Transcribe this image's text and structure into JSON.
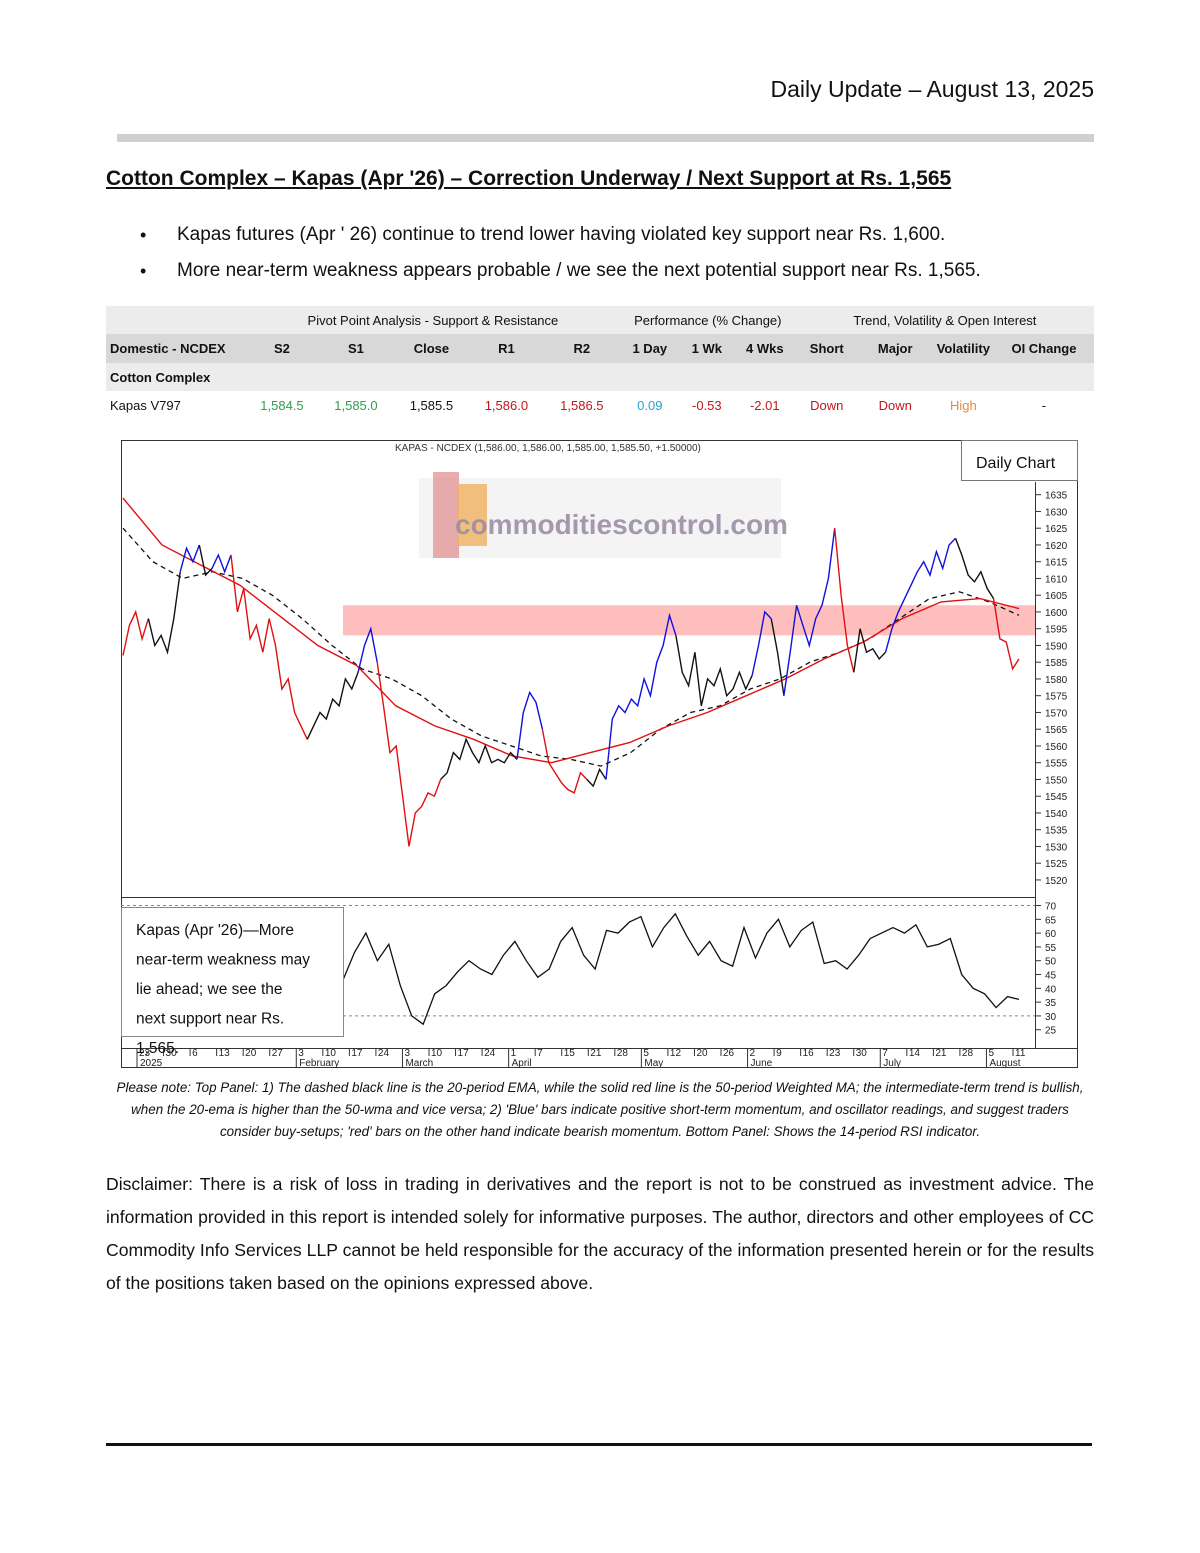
{
  "header": {
    "date": "Daily Update – August 13, 2025"
  },
  "title": "Cotton Complex – Kapas (Apr '26) – Correction Underway / Next Support at Rs. 1,565",
  "bullets": [
    "Kapas futures (Apr ' 26) continue to trend lower having violated key support near Rs. 1,600.",
    "More near-term weakness appears probable / we see the next potential support near Rs. 1,565."
  ],
  "table": {
    "groups": [
      "Pivot Point Analysis - Support & Resistance",
      "Performance (% Change)",
      "Trend, Volatility & Open Interest"
    ],
    "headers": [
      "Domestic - NCDEX",
      "S2",
      "S1",
      "Close",
      "R1",
      "R2",
      "1 Day",
      "1 Wk",
      "4 Wks",
      "Short",
      "Major",
      "Volatility",
      "OI Change"
    ],
    "section": "Cotton Complex",
    "row": [
      "Kapas V797",
      "1,584.5",
      "1,585.0",
      "1,585.5",
      "1,586.0",
      "1,586.5",
      "0.09",
      "-0.53",
      "-2.01",
      "Down",
      "Down",
      "High",
      "-"
    ],
    "colors": {
      "green": "#2e9e4f",
      "red": "#c0171b",
      "cyan": "#1fa6c9",
      "orange": "#e6893a",
      "black": "#111111"
    }
  },
  "chart": {
    "header": "KAPAS - NCDEX (1,586.00, 1,586.00, 1,585.00, 1,585.50, +1.50000)",
    "badge": "Daily Chart",
    "watermark": "commoditiescontrol.com",
    "annotation": "Kapas (Apr '26)—More near-term weakness may lie ahead; we see the next support near Rs. 1,565.",
    "colors": {
      "up": "#1010e0",
      "down": "#e01010",
      "neutral": "#111111",
      "wma": "#e01010",
      "zone": "#ffb3b3"
    }
  },
  "chart_data": {
    "type": "line",
    "title": "KAPAS - NCDEX (1,586.00, 1,586.00, 1,585.00, 1,585.50, +1.50000)",
    "price_axis": {
      "ticks": [
        1520,
        1525,
        1530,
        1535,
        1540,
        1545,
        1550,
        1555,
        1560,
        1565,
        1570,
        1575,
        1580,
        1585,
        1590,
        1595,
        1600,
        1605,
        1610,
        1615,
        1620,
        1625,
        1630,
        1635
      ],
      "ylim": [
        1517,
        1637
      ]
    },
    "rsi_axis": {
      "ticks": [
        25,
        30,
        35,
        40,
        45,
        50,
        55,
        60,
        65,
        70
      ],
      "ylim": [
        22,
        72
      ],
      "reference_lines": [
        70,
        30
      ]
    },
    "support_zone": [
      1593,
      1602
    ],
    "x_day_labels": [
      "23",
      "30",
      "6",
      "13",
      "20",
      "27",
      "3",
      "10",
      "17",
      "24",
      "3",
      "10",
      "17",
      "24",
      "1",
      "7",
      "15",
      "21",
      "28",
      "5",
      "12",
      "20",
      "26",
      "2",
      "9",
      "16",
      "23",
      "30",
      "7",
      "14",
      "21",
      "28",
      "5",
      "11"
    ],
    "x_month_labels": [
      "2025",
      "February",
      "March",
      "April",
      "May",
      "June",
      "July",
      "August"
    ],
    "series": [
      {
        "name": "Price",
        "segments": [
          {
            "trend": "down",
            "values": [
              1587,
              1596,
              1600,
              1592,
              1598
            ]
          },
          {
            "trend": "neutral",
            "values": [
              1598,
              1590,
              1593,
              1588,
              1598,
              1612
            ]
          },
          {
            "trend": "up",
            "values": [
              1612,
              1619,
              1615,
              1620
            ]
          },
          {
            "trend": "neutral",
            "values": [
              1620,
              1611,
              1613
            ]
          },
          {
            "trend": "up",
            "values": [
              1613,
              1617,
              1612,
              1617
            ]
          },
          {
            "trend": "down",
            "values": [
              1617,
              1600,
              1607,
              1592,
              1596,
              1588,
              1598,
              1590,
              1577,
              1580,
              1570,
              1566,
              1562
            ]
          },
          {
            "trend": "neutral",
            "values": [
              1562,
              1566,
              1570,
              1568,
              1574,
              1572,
              1580,
              1577,
              1582
            ]
          },
          {
            "trend": "up",
            "values": [
              1582,
              1590,
              1595,
              1585
            ]
          },
          {
            "trend": "down",
            "values": [
              1585,
              1572,
              1558,
              1560,
              1545,
              1530,
              1540,
              1542,
              1546,
              1545,
              1550
            ]
          },
          {
            "trend": "neutral",
            "values": [
              1550,
              1552,
              1558,
              1556,
              1562,
              1558,
              1555,
              1560,
              1555,
              1556,
              1555,
              1558,
              1556
            ]
          },
          {
            "trend": "up",
            "values": [
              1556,
              1570,
              1576,
              1573,
              1565
            ]
          },
          {
            "trend": "down",
            "values": [
              1565,
              1555,
              1552,
              1549,
              1547,
              1546,
              1552,
              1550
            ]
          },
          {
            "trend": "neutral",
            "values": [
              1550,
              1548,
              1553,
              1550
            ]
          },
          {
            "trend": "up",
            "values": [
              1550,
              1568,
              1572,
              1570,
              1574,
              1572,
              1580,
              1575,
              1585,
              1590,
              1599,
              1593
            ]
          },
          {
            "trend": "neutral",
            "values": [
              1593,
              1582,
              1578,
              1588,
              1572,
              1580,
              1578,
              1583,
              1575,
              1577,
              1582,
              1577,
              1581
            ]
          },
          {
            "trend": "up",
            "values": [
              1581,
              1590,
              1600,
              1598
            ]
          },
          {
            "trend": "neutral",
            "values": [
              1598,
              1588,
              1575
            ]
          },
          {
            "trend": "up",
            "values": [
              1575,
              1588,
              1602,
              1596,
              1590,
              1598,
              1602,
              1610,
              1625
            ]
          },
          {
            "trend": "down",
            "values": [
              1625,
              1605,
              1590,
              1582
            ]
          },
          {
            "trend": "neutral",
            "values": [
              1582,
              1595,
              1588,
              1589,
              1586,
              1588
            ]
          },
          {
            "trend": "up",
            "values": [
              1588,
              1595,
              1600,
              1604,
              1608,
              1612,
              1615,
              1611,
              1618,
              1613,
              1620,
              1622
            ]
          },
          {
            "trend": "neutral",
            "values": [
              1622,
              1617,
              1611,
              1609,
              1612,
              1607,
              1604
            ]
          },
          {
            "trend": "down",
            "values": [
              1604,
              1592,
              1591,
              1583,
              1586
            ]
          }
        ]
      },
      {
        "name": "20-period EMA",
        "values": [
          1625,
          1615,
          1610,
          1612,
          1610,
          1605,
          1598,
          1590,
          1583,
          1580,
          1575,
          1568,
          1563,
          1560,
          1557,
          1556,
          1554,
          1558,
          1565,
          1570,
          1572,
          1577,
          1580,
          1585,
          1588,
          1592,
          1598,
          1604,
          1606,
          1603,
          1599
        ]
      },
      {
        "name": "50-period WMA",
        "values": [
          1634,
          1620,
          1614,
          1608,
          1599,
          1590,
          1584,
          1572,
          1566,
          1562,
          1557,
          1555,
          1558,
          1561,
          1566,
          1570,
          1575,
          1580,
          1586,
          1591,
          1598,
          1603,
          1604,
          1601
        ]
      },
      {
        "name": "RSI 14",
        "values": [
          43,
          53,
          60,
          50,
          56,
          41,
          30,
          27,
          38,
          41,
          46,
          50,
          47,
          45,
          52,
          57,
          50,
          44,
          47,
          57,
          62,
          52,
          47,
          61,
          60,
          64,
          66,
          55,
          62,
          67,
          59,
          52,
          57,
          50,
          48,
          62,
          51,
          60,
          65,
          55,
          61,
          64,
          49,
          50,
          47,
          52,
          58,
          60,
          62,
          60,
          63,
          55,
          56,
          58,
          45,
          40,
          38,
          33,
          37,
          36
        ]
      }
    ]
  },
  "note": "Please note: Top Panel: 1) The dashed black line is the 20-period EMA, while the solid red line is the 50-period Weighted MA; the intermediate-term trend is bullish, when the 20-ema is higher than the 50-wma and vice versa; 2) 'Blue' bars indicate positive short-term momentum, and oscillator readings, and suggest traders consider buy-setups; 'red' bars on the other hand indicate bearish momentum. Bottom Panel: Shows the 14-period RSI indicator.",
  "disclaimer": "Disclaimer: There is a risk of loss in trading in derivatives and the report is not to be construed as investment advice. The information provided in this report is intended solely for informative purposes. The author, directors and other employees of CC Commodity Info Services LLP cannot be held responsible for the accuracy of the information presented herein or for the results of the positions taken based on the opinions expressed above."
}
